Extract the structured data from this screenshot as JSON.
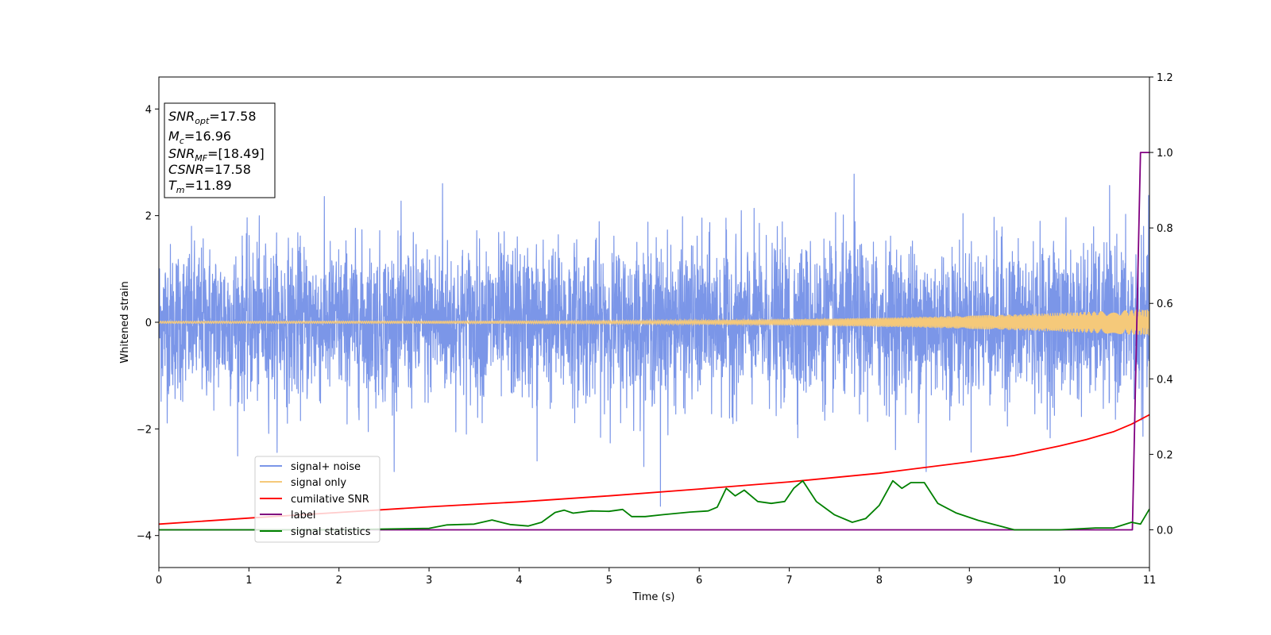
{
  "chart_data": {
    "type": "line",
    "xlabel": "Time (s)",
    "ylabel": "Whitened strain",
    "xlim": [
      0,
      11
    ],
    "ylim_left": [
      -4.6,
      4.6
    ],
    "ylim_right": [
      -0.1,
      1.2
    ],
    "x_ticks": [
      "0",
      "1",
      "2",
      "3",
      "4",
      "5",
      "6",
      "7",
      "8",
      "9",
      "10",
      "11"
    ],
    "y_left_ticks": [
      "-4",
      "-2",
      "0",
      "2",
      "4"
    ],
    "y_right_ticks": [
      "0.0",
      "0.2",
      "0.4",
      "0.6",
      "0.8",
      "1.0",
      "1.2"
    ],
    "legend_position": "lower-left",
    "annotation": {
      "lines": [
        {
          "name": "SNR",
          "sub": "opt",
          "value": "=17.58"
        },
        {
          "name": "M",
          "sub": "c",
          "value": "=16.96"
        },
        {
          "name": "SNR",
          "sub": "MF",
          "value": "=[18.49]"
        },
        {
          "name": "CSNR",
          "sub": "",
          "value": "=17.58"
        },
        {
          "name": "T",
          "sub": "m",
          "value": "=11.89"
        }
      ]
    },
    "series": [
      {
        "name": "signal+ noise",
        "axis": "left",
        "color": "#7b96e8",
        "kind": "noise",
        "sigma": 0.72,
        "approx_range": [
          -3.4,
          2.8
        ],
        "spikes": [
          {
            "x": 5.57,
            "y": -3.45
          },
          {
            "x": 8.52,
            "y": -2.8
          },
          {
            "x": 7.72,
            "y": 2.78
          },
          {
            "x": 4.2,
            "y": -2.6
          },
          {
            "x": 3.15,
            "y": 2.6
          }
        ]
      },
      {
        "name": "signal only",
        "axis": "left",
        "color": "#f5c97a",
        "kind": "chirp",
        "amplitude_start": 0.02,
        "amplitude_end": 0.25
      },
      {
        "name": "cumilative SNR",
        "axis": "right",
        "color": "#ff0000",
        "x": [
          0,
          1,
          2,
          3,
          4,
          5,
          6,
          7,
          8,
          9,
          9.5,
          10,
          10.3,
          10.6,
          10.8,
          11
        ],
        "y": [
          0.015,
          0.031,
          0.046,
          0.061,
          0.074,
          0.09,
          0.108,
          0.127,
          0.15,
          0.18,
          0.197,
          0.222,
          0.239,
          0.26,
          0.28,
          0.305
        ]
      },
      {
        "name": "label",
        "axis": "right",
        "color": "#800080",
        "x": [
          0,
          10.81,
          10.9,
          11
        ],
        "y": [
          0.0,
          0.0,
          1.0,
          1.0
        ]
      },
      {
        "name": "signal statistics",
        "axis": "right",
        "color": "#008000",
        "x": [
          0,
          1,
          2,
          2.5,
          3,
          3.2,
          3.5,
          3.7,
          3.9,
          4.1,
          4.25,
          4.4,
          4.5,
          4.6,
          4.8,
          5.0,
          5.15,
          5.25,
          5.4,
          5.6,
          5.9,
          6.1,
          6.2,
          6.3,
          6.4,
          6.5,
          6.65,
          6.8,
          6.95,
          7.05,
          7.15,
          7.3,
          7.5,
          7.7,
          7.85,
          8.0,
          8.15,
          8.25,
          8.35,
          8.5,
          8.65,
          8.85,
          9.1,
          9.5,
          10.0,
          10.4,
          10.6,
          10.8,
          10.9,
          11
        ],
        "y": [
          0.0,
          0.0,
          0.0,
          0.002,
          0.004,
          0.013,
          0.015,
          0.026,
          0.014,
          0.01,
          0.02,
          0.046,
          0.052,
          0.044,
          0.05,
          0.049,
          0.054,
          0.035,
          0.035,
          0.04,
          0.047,
          0.05,
          0.06,
          0.11,
          0.09,
          0.105,
          0.075,
          0.07,
          0.075,
          0.11,
          0.13,
          0.075,
          0.04,
          0.02,
          0.03,
          0.065,
          0.13,
          0.11,
          0.125,
          0.125,
          0.07,
          0.045,
          0.025,
          0.0,
          0.0,
          0.005,
          0.005,
          0.02,
          0.015,
          0.055
        ]
      }
    ]
  }
}
